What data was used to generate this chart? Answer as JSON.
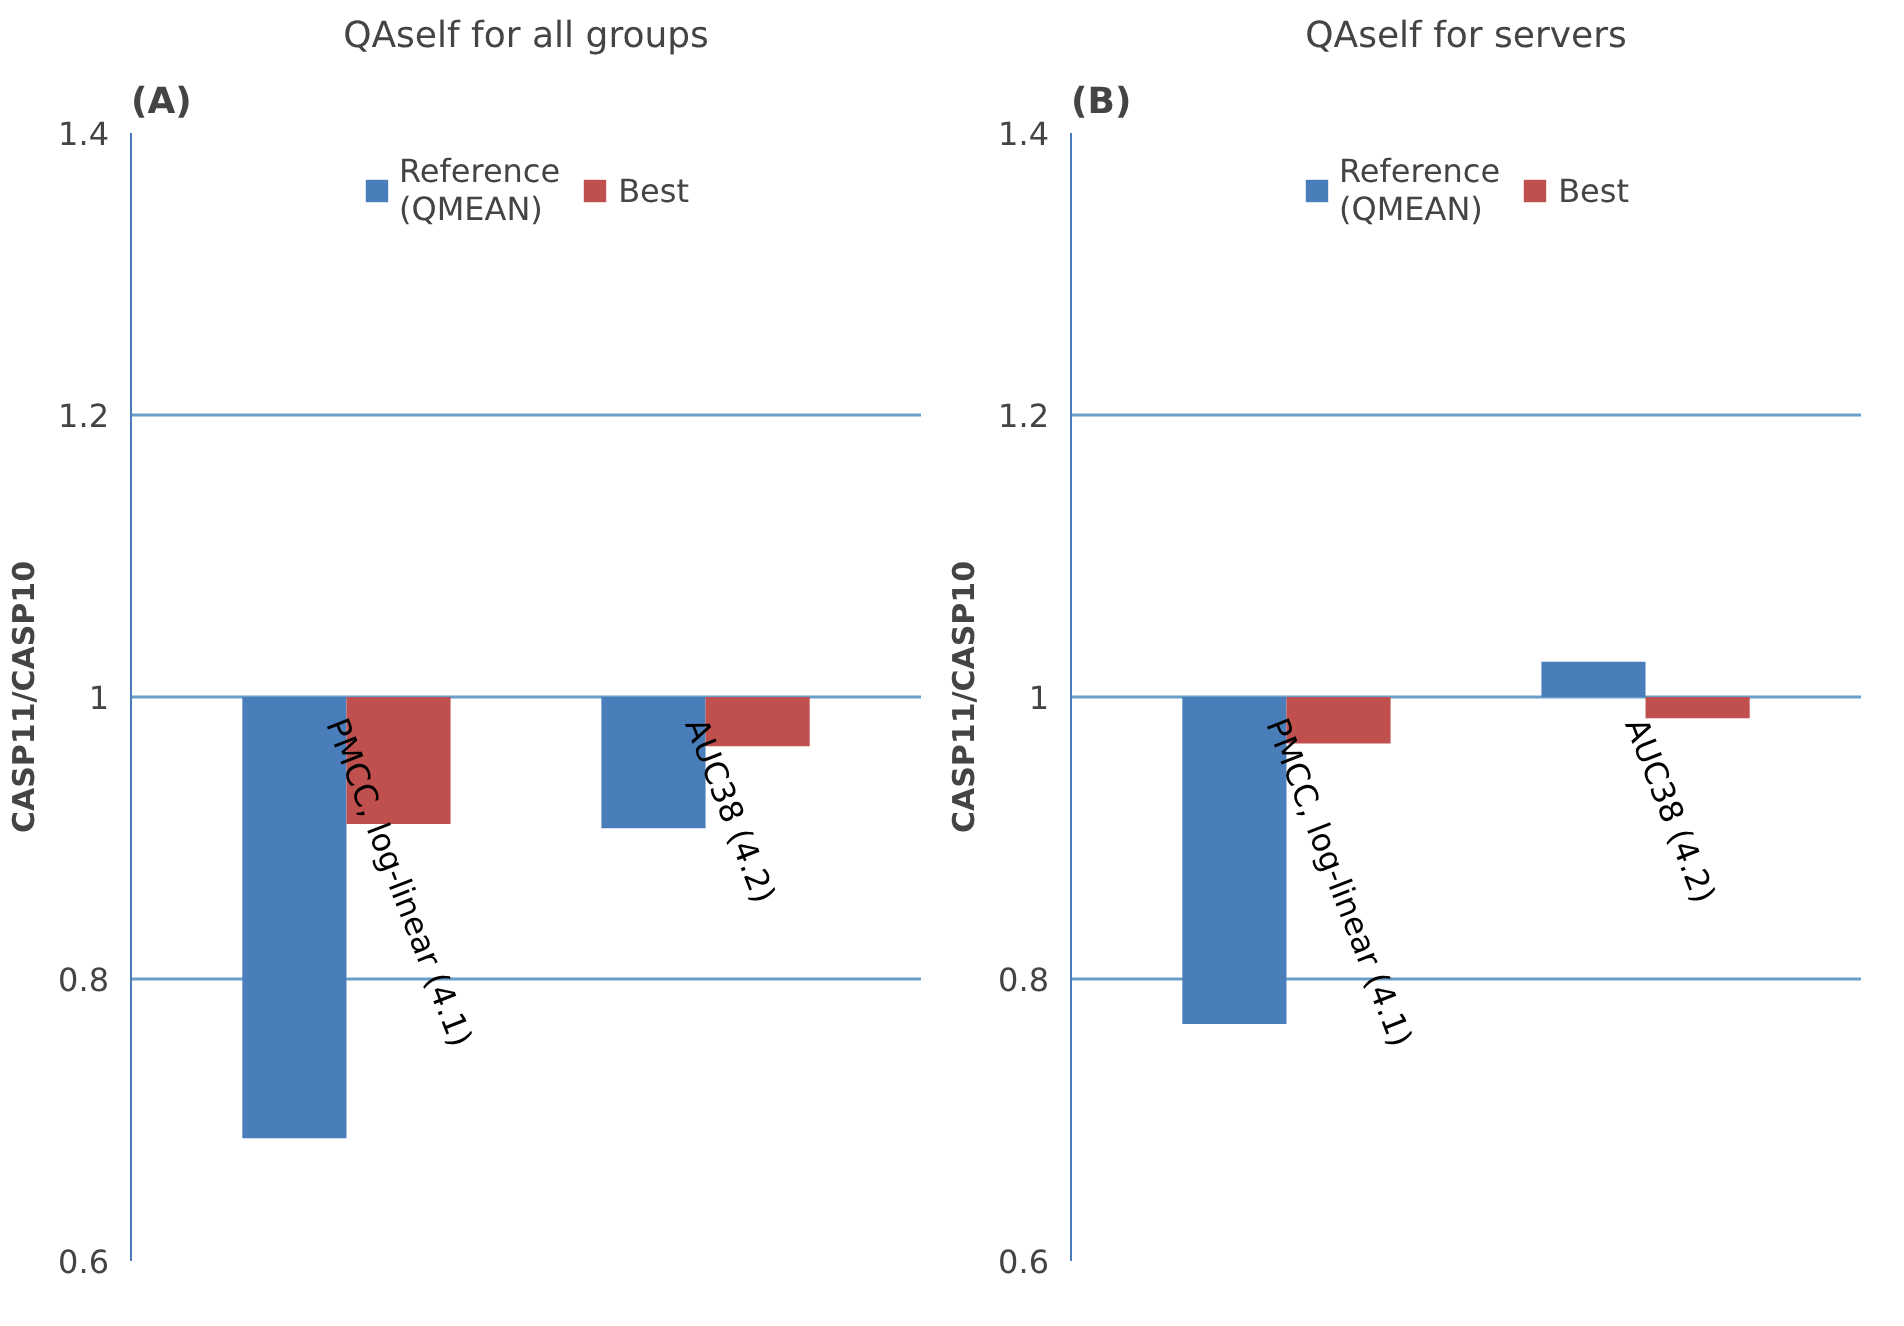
{
  "chart_data": [
    {
      "type": "bar",
      "title": "QAself for all groups",
      "ylabel": "CASP11/CASP10",
      "annotations": [
        "(A)"
      ],
      "categories": [
        "PMCC, log-linear (4.1)",
        "AUC38 (4.2)"
      ],
      "series": [
        {
          "name": "Reference\n(QMEAN)",
          "color": "#4a7ebb",
          "values": [
            -0.313,
            -0.093
          ],
          "base": [
            1,
            1
          ]
        },
        {
          "name": "Best",
          "color": "#c0504d",
          "values": [
            -0.09,
            -0.035
          ],
          "base": [
            1,
            1
          ]
        }
      ],
      "ylim": [
        0.6,
        1.4
      ],
      "yticks": [
        0.6,
        0.8,
        1,
        1.2,
        1.4
      ],
      "grid": "y",
      "legend": "top"
    },
    {
      "type": "bar",
      "title": "QAself for servers",
      "ylabel": "CASP11/CASP10",
      "annotations": [
        "(B)"
      ],
      "categories": [
        "PMCC, log-linear (4.1)",
        "AUC38 (4.2)"
      ],
      "series": [
        {
          "name": "Reference\n(QMEAN)",
          "color": "#4a7ebb",
          "values": [
            -0.232,
            0.025
          ],
          "base": [
            1,
            1
          ]
        },
        {
          "name": "Best",
          "color": "#c0504d",
          "values": [
            -0.033,
            -0.015
          ],
          "base": [
            1,
            1
          ]
        }
      ],
      "ylim": [
        0.6,
        1.4
      ],
      "yticks": [
        0.6,
        0.8,
        1,
        1.2,
        1.4
      ],
      "grid": "y",
      "legend": "top"
    }
  ]
}
